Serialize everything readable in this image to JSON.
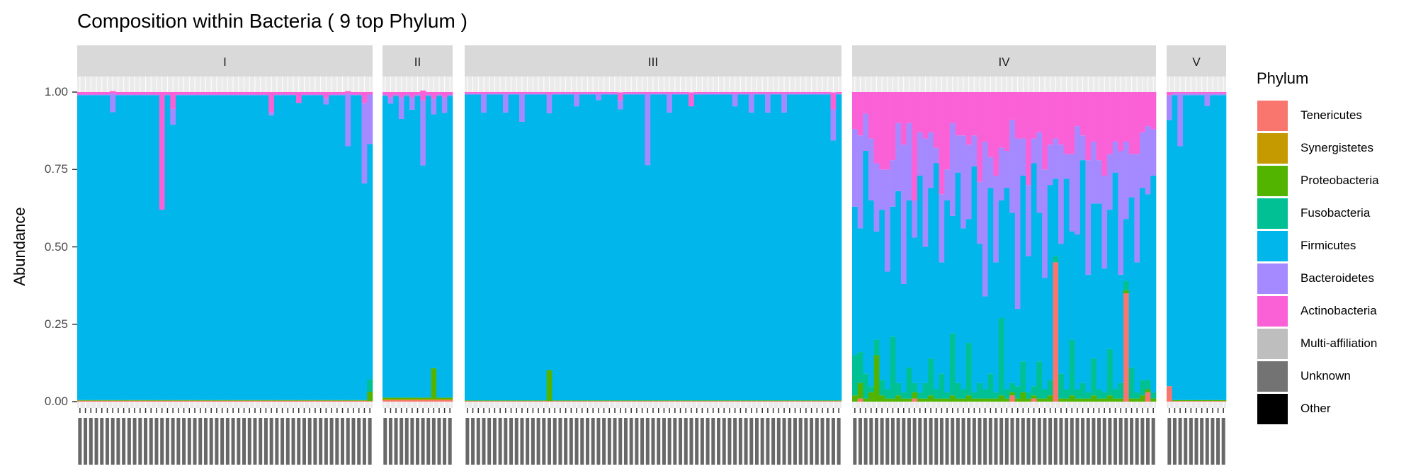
{
  "chart_data": {
    "type": "bar",
    "stacked": true,
    "title": "Composition within Bacteria ( 9 top Phylum )",
    "xlabel": "",
    "ylabel": "Abundance",
    "ylim": [
      0,
      1
    ],
    "yticks": [
      0,
      0.25,
      0.5,
      0.75,
      1
    ],
    "ytick_labels": [
      "0.00",
      "0.25",
      "0.50",
      "0.75",
      "1.00"
    ],
    "legend": {
      "title": "Phylum",
      "placement": "right",
      "entries": [
        {
          "name": "Tenericutes",
          "color": "#F8766D"
        },
        {
          "name": "Synergistetes",
          "color": "#C49A00"
        },
        {
          "name": "Proteobacteria",
          "color": "#53B400"
        },
        {
          "name": "Fusobacteria",
          "color": "#00C094"
        },
        {
          "name": "Firmicutes",
          "color": "#00B6EB"
        },
        {
          "name": "Bacteroidetes",
          "color": "#A58AFF"
        },
        {
          "name": "Actinobacteria",
          "color": "#FB61D7"
        },
        {
          "name": "Multi-affiliation",
          "color": "#BEBEBE"
        },
        {
          "name": "Unknown",
          "color": "#737373"
        },
        {
          "name": "Other",
          "color": "#000000"
        }
      ]
    },
    "stack_order_bottom_up": [
      "Tenericutes",
      "Synergistetes",
      "Proteobacteria",
      "Fusobacteria",
      "Firmicutes",
      "Bacteroidetes",
      "Actinobacteria"
    ],
    "facets": [
      {
        "label": "I",
        "n": 54,
        "base": [
          0.003,
          0,
          0.002,
          0,
          0.985,
          0.002,
          0.008
        ],
        "overrides": {
          "6": [
            0.003,
            0,
            0.002,
            0,
            0.93,
            0.06,
            0.008
          ],
          "15": [
            0.003,
            0,
            0.002,
            0,
            0.615,
            0,
            0.38
          ],
          "17": [
            0.003,
            0,
            0.002,
            0,
            0.89,
            0.05,
            0.055
          ],
          "35": [
            0.003,
            0,
            0.002,
            0,
            0.92,
            0.01,
            0.065
          ],
          "40": [
            0.003,
            0,
            0.002,
            0,
            0.96,
            0,
            0.035
          ],
          "45": [
            0.003,
            0,
            0.002,
            0,
            0.955,
            0.02,
            0.02
          ],
          "49": [
            0.003,
            0,
            0.002,
            0,
            0.82,
            0.17,
            0.008
          ],
          "52": [
            0.003,
            0,
            0.002,
            0,
            0.7,
            0.26,
            0.035
          ],
          "53": [
            0.002,
            0,
            0.03,
            0.04,
            0.76,
            0.16,
            0.008
          ]
        }
      },
      {
        "label": "II",
        "n": 13,
        "base": [
          0.005,
          0.003,
          0.005,
          0,
          0.975,
          0.004,
          0.008
        ],
        "overrides": {
          "1": [
            0.005,
            0.003,
            0.005,
            0,
            0.95,
            0.02,
            0.017
          ],
          "3": [
            0.005,
            0.003,
            0.005,
            0,
            0.9,
            0.07,
            0.017
          ],
          "5": [
            0.005,
            0.003,
            0.005,
            0,
            0.93,
            0.04,
            0.017
          ],
          "7": [
            0.005,
            0.003,
            0.005,
            0,
            0.75,
            0.21,
            0.032
          ],
          "9": [
            0.005,
            0.003,
            0.1,
            0,
            0.82,
            0.05,
            0.022
          ],
          "11": [
            0.005,
            0.003,
            0.005,
            0,
            0.92,
            0.05,
            0.017
          ]
        }
      },
      {
        "label": "III",
        "n": 69,
        "base": [
          0.002,
          0,
          0.002,
          0,
          0.988,
          0.003,
          0.005
        ],
        "overrides": {
          "3": [
            0.002,
            0,
            0.002,
            0,
            0.93,
            0.06,
            0.006
          ],
          "7": [
            0.002,
            0,
            0.002,
            0,
            0.93,
            0.06,
            0.006
          ],
          "10": [
            0.002,
            0,
            0.002,
            0,
            0.9,
            0.09,
            0.006
          ],
          "15": [
            0.002,
            0,
            0.1,
            0,
            0.83,
            0.06,
            0.008
          ],
          "20": [
            0.002,
            0,
            0.002,
            0,
            0.95,
            0.04,
            0.006
          ],
          "24": [
            0.002,
            0,
            0.002,
            0,
            0.97,
            0.02,
            0.006
          ],
          "28": [
            0.002,
            0,
            0.002,
            0,
            0.94,
            0.03,
            0.025
          ],
          "33": [
            0.002,
            0,
            0.002,
            0,
            0.76,
            0.23,
            0.006
          ],
          "37": [
            0.002,
            0,
            0.002,
            0,
            0.93,
            0.06,
            0.006
          ],
          "41": [
            0.002,
            0,
            0.002,
            0,
            0.95,
            0,
            0.045
          ],
          "49": [
            0.002,
            0,
            0.002,
            0,
            0.95,
            0.04,
            0.006
          ],
          "52": [
            0.002,
            0,
            0.002,
            0,
            0.93,
            0.06,
            0.006
          ],
          "55": [
            0.002,
            0,
            0.002,
            0,
            0.93,
            0.06,
            0.006
          ],
          "58": [
            0.002,
            0,
            0.002,
            0,
            0.93,
            0.06,
            0.006
          ],
          "67": [
            0.002,
            0,
            0.002,
            0,
            0.84,
            0.1,
            0.055
          ]
        }
      },
      {
        "label": "IV",
        "n": 56,
        "samples": [
          [
            0,
            0,
            0.02,
            0.13,
            0.48,
            0.25,
            0.12
          ],
          [
            0.01,
            0,
            0.05,
            0.1,
            0.4,
            0.3,
            0.14
          ],
          [
            0,
            0,
            0.01,
            0.08,
            0.72,
            0.12,
            0.07
          ],
          [
            0,
            0,
            0.03,
            0.02,
            0.6,
            0.2,
            0.15
          ],
          [
            0,
            0,
            0.15,
            0.05,
            0.35,
            0.22,
            0.23
          ],
          [
            0,
            0,
            0.02,
            0.05,
            0.55,
            0.13,
            0.25
          ],
          [
            0,
            0,
            0.01,
            0.03,
            0.38,
            0.33,
            0.25
          ],
          [
            0,
            0,
            0.01,
            0.2,
            0.42,
            0.15,
            0.22
          ],
          [
            0,
            0,
            0.02,
            0.04,
            0.62,
            0.22,
            0.1
          ],
          [
            0,
            0,
            0.01,
            0.02,
            0.35,
            0.45,
            0.17
          ],
          [
            0,
            0,
            0.01,
            0.1,
            0.54,
            0.25,
            0.1
          ],
          [
            0.01,
            0,
            0.02,
            0.03,
            0.47,
            0.12,
            0.35
          ],
          [
            0,
            0,
            0.01,
            0.02,
            0.7,
            0.14,
            0.13
          ],
          [
            0,
            0,
            0.01,
            0.05,
            0.44,
            0.35,
            0.15
          ],
          [
            0,
            0,
            0.02,
            0.12,
            0.55,
            0.18,
            0.13
          ],
          [
            0,
            0,
            0.01,
            0.03,
            0.73,
            0.05,
            0.18
          ],
          [
            0,
            0,
            0.01,
            0.08,
            0.36,
            0.22,
            0.33
          ],
          [
            0,
            0,
            0.01,
            0.02,
            0.62,
            0.1,
            0.25
          ],
          [
            0,
            0,
            0.02,
            0.2,
            0.38,
            0.3,
            0.1
          ],
          [
            0,
            0,
            0.01,
            0.05,
            0.68,
            0.12,
            0.14
          ],
          [
            0,
            0,
            0.01,
            0.03,
            0.52,
            0.3,
            0.14
          ],
          [
            0,
            0,
            0.02,
            0.17,
            0.4,
            0.24,
            0.17
          ],
          [
            0,
            0,
            0.01,
            0.02,
            0.73,
            0.1,
            0.14
          ],
          [
            0,
            0,
            0.01,
            0.05,
            0.45,
            0.2,
            0.29
          ],
          [
            0,
            0,
            0.01,
            0.03,
            0.3,
            0.5,
            0.16
          ],
          [
            0,
            0,
            0.01,
            0.08,
            0.6,
            0.1,
            0.21
          ],
          [
            0,
            0,
            0.01,
            0.02,
            0.42,
            0.28,
            0.27
          ],
          [
            0,
            0,
            0.02,
            0.25,
            0.38,
            0.17,
            0.18
          ],
          [
            0,
            0,
            0.01,
            0.03,
            0.65,
            0.12,
            0.19
          ],
          [
            0.02,
            0,
            0.01,
            0.03,
            0.55,
            0.3,
            0.09
          ],
          [
            0,
            0,
            0.01,
            0.04,
            0.25,
            0.55,
            0.15
          ],
          [
            0,
            0,
            0.03,
            0.1,
            0.6,
            0.12,
            0.15
          ],
          [
            0,
            0,
            0.01,
            0.02,
            0.44,
            0.23,
            0.3
          ],
          [
            0.01,
            0,
            0.01,
            0.03,
            0.72,
            0.08,
            0.15
          ],
          [
            0,
            0,
            0.01,
            0.12,
            0.48,
            0.26,
            0.13
          ],
          [
            0,
            0,
            0.01,
            0.03,
            0.36,
            0.35,
            0.25
          ],
          [
            0,
            0,
            0.02,
            0.05,
            0.63,
            0.13,
            0.17
          ],
          [
            0.45,
            0,
            0,
            0.02,
            0.25,
            0.13,
            0.15
          ],
          [
            0,
            0,
            0.01,
            0.08,
            0.42,
            0.32,
            0.17
          ],
          [
            0,
            0,
            0.01,
            0.03,
            0.68,
            0.08,
            0.2
          ],
          [
            0,
            0,
            0.02,
            0.18,
            0.35,
            0.25,
            0.2
          ],
          [
            0,
            0,
            0.01,
            0.03,
            0.5,
            0.35,
            0.11
          ],
          [
            0,
            0,
            0.01,
            0.05,
            0.72,
            0.08,
            0.14
          ],
          [
            0,
            0,
            0.01,
            0.02,
            0.38,
            0.37,
            0.22
          ],
          [
            0,
            0,
            0.02,
            0.12,
            0.5,
            0.2,
            0.16
          ],
          [
            0,
            0,
            0.01,
            0.03,
            0.6,
            0.14,
            0.22
          ],
          [
            0,
            0,
            0.01,
            0.02,
            0.4,
            0.3,
            0.27
          ],
          [
            0,
            0,
            0.02,
            0.15,
            0.45,
            0.18,
            0.2
          ],
          [
            0,
            0,
            0.01,
            0.03,
            0.7,
            0.1,
            0.16
          ],
          [
            0,
            0,
            0.01,
            0.05,
            0.35,
            0.4,
            0.19
          ],
          [
            0.35,
            0,
            0.01,
            0.03,
            0.2,
            0.25,
            0.16
          ],
          [
            0,
            0,
            0.01,
            0.1,
            0.55,
            0.14,
            0.2
          ],
          [
            0,
            0,
            0.01,
            0.02,
            0.42,
            0.35,
            0.2
          ],
          [
            0,
            0,
            0.02,
            0.05,
            0.62,
            0.18,
            0.13
          ],
          [
            0.03,
            0,
            0.01,
            0.03,
            0.6,
            0.22,
            0.11
          ],
          [
            0,
            0,
            0.01,
            0.02,
            0.7,
            0.15,
            0.12
          ]
        ]
      },
      {
        "label": "V",
        "n": 11,
        "base": [
          0.002,
          0,
          0.003,
          0,
          0.985,
          0.005,
          0.005
        ],
        "overrides": {
          "0": [
            0.05,
            0,
            0,
            0,
            0.86,
            0.08,
            0.01
          ],
          "2": [
            0.002,
            0,
            0.003,
            0,
            0.82,
            0.17,
            0.005
          ],
          "7": [
            0.002,
            0,
            0.003,
            0,
            0.95,
            0.04,
            0.005
          ]
        }
      }
    ]
  }
}
